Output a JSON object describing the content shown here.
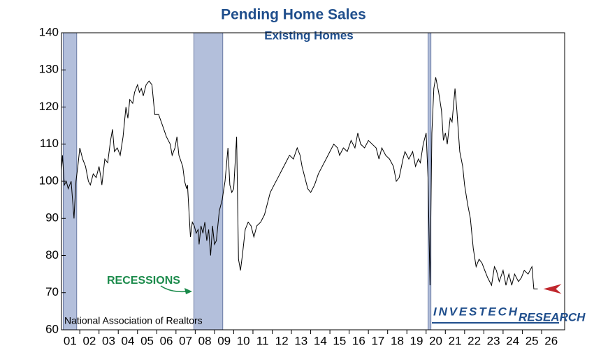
{
  "chart_data": {
    "type": "line",
    "title": "Pending Home Sales",
    "subtitle": "Existing Homes",
    "source": "National Association of Realtors",
    "annotation": "RECESSIONS",
    "logo": [
      "INVESTECH",
      "RESEARCH"
    ],
    "color": "#000000",
    "recession_color": "#b3bfdb",
    "recessions": [
      [
        1.14,
        1.84
      ],
      [
        7.93,
        9.43
      ],
      [
        20.1,
        20.25
      ]
    ],
    "xlim": [
      1.05,
      27.2
    ],
    "ylim": [
      60,
      140
    ],
    "yticks": [
      60,
      70,
      80,
      90,
      100,
      110,
      120,
      130,
      140
    ],
    "xticks": [
      {
        "value": 1,
        "label": "01"
      },
      {
        "value": 2,
        "label": "02"
      },
      {
        "value": 3,
        "label": "03"
      },
      {
        "value": 4,
        "label": "04"
      },
      {
        "value": 5,
        "label": "05"
      },
      {
        "value": 6,
        "label": "06"
      },
      {
        "value": 7,
        "label": "07"
      },
      {
        "value": 8,
        "label": "08"
      },
      {
        "value": 9,
        "label": "09"
      },
      {
        "value": 10,
        "label": "10"
      },
      {
        "value": 11,
        "label": "11"
      },
      {
        "value": 12,
        "label": "12"
      },
      {
        "value": 13,
        "label": "13"
      },
      {
        "value": 14,
        "label": "14"
      },
      {
        "value": 15,
        "label": "15"
      },
      {
        "value": 16,
        "label": "16"
      },
      {
        "value": 17,
        "label": "17"
      },
      {
        "value": 18,
        "label": "18"
      },
      {
        "value": 19,
        "label": "19"
      },
      {
        "value": 20,
        "label": "20"
      },
      {
        "value": 21,
        "label": "21"
      },
      {
        "value": 22,
        "label": "22"
      },
      {
        "value": 23,
        "label": "23"
      },
      {
        "value": 24,
        "label": "24"
      },
      {
        "value": 25,
        "label": "25"
      },
      {
        "value": 26,
        "label": "26"
      }
    ],
    "grid": false,
    "x": [
      1.05,
      1.1,
      1.2,
      1.3,
      1.4,
      1.55,
      1.7,
      1.8,
      1.9,
      2.0,
      2.15,
      2.3,
      2.45,
      2.55,
      2.7,
      2.85,
      3.0,
      3.1,
      3.15,
      3.3,
      3.45,
      3.6,
      3.7,
      3.8,
      3.95,
      4.1,
      4.25,
      4.4,
      4.5,
      4.6,
      4.75,
      4.85,
      5.0,
      5.1,
      5.2,
      5.3,
      5.45,
      5.6,
      5.75,
      5.9,
      6.1,
      6.3,
      6.5,
      6.7,
      6.8,
      6.95,
      7.05,
      7.15,
      7.35,
      7.45,
      7.55,
      7.6,
      7.75,
      7.85,
      7.95,
      8.05,
      8.15,
      8.2,
      8.3,
      8.4,
      8.5,
      8.6,
      8.7,
      8.8,
      8.9,
      9.0,
      9.1,
      9.25,
      9.4,
      9.55,
      9.7,
      9.8,
      9.9,
      10.0,
      10.15,
      10.25,
      10.35,
      10.45,
      10.6,
      10.75,
      10.9,
      11.05,
      11.2,
      11.4,
      11.6,
      11.75,
      11.9,
      12.1,
      12.3,
      12.5,
      12.7,
      12.9,
      13.1,
      13.3,
      13.45,
      13.55,
      13.7,
      13.85,
      14.0,
      14.2,
      14.4,
      14.6,
      14.8,
      15.0,
      15.2,
      15.4,
      15.5,
      15.7,
      15.9,
      16.1,
      16.3,
      16.45,
      16.6,
      16.8,
      17.0,
      17.2,
      17.4,
      17.55,
      17.7,
      17.9,
      18.1,
      18.3,
      18.45,
      18.6,
      18.8,
      18.9,
      19.1,
      19.3,
      19.45,
      19.6,
      19.7,
      19.85,
      20.0,
      20.1,
      20.2,
      20.3,
      20.4,
      20.5,
      20.65,
      20.8,
      20.9,
      21.0,
      21.1,
      21.25,
      21.35,
      21.5,
      21.6,
      21.75,
      21.9,
      22.0,
      22.15,
      22.3,
      22.45,
      22.6,
      22.75,
      22.9,
      23.05,
      23.2,
      23.4,
      23.55,
      23.65,
      23.8,
      24.0,
      24.15,
      24.3,
      24.45,
      24.6,
      24.8,
      24.95,
      25.1,
      25.3,
      25.5,
      25.6,
      25.8
    ],
    "values": [
      103,
      107,
      99,
      100,
      98,
      100,
      90,
      100,
      104,
      109,
      106,
      104,
      100,
      99,
      102,
      101,
      104,
      101,
      99,
      106,
      105,
      111,
      114,
      108,
      109,
      107,
      112,
      120,
      117,
      122,
      121,
      124,
      126,
      124,
      125,
      123,
      126,
      127,
      126,
      118,
      118,
      115,
      112,
      110,
      107,
      109,
      112,
      107,
      104,
      100,
      98,
      99,
      85,
      89,
      88,
      86,
      87,
      83,
      88,
      86,
      89,
      84,
      87,
      80,
      88,
      83,
      84,
      92,
      95,
      100,
      109,
      99,
      97,
      98,
      112,
      79,
      76,
      80,
      87,
      89,
      88,
      85,
      88,
      89,
      91,
      94,
      97,
      99,
      101,
      103,
      105,
      107,
      106,
      109,
      107,
      104,
      101,
      98,
      97,
      99,
      102,
      104,
      106,
      108,
      110,
      109,
      107,
      109,
      108,
      111,
      109,
      113,
      110,
      109,
      111,
      110,
      109,
      106,
      109,
      107,
      106,
      104,
      100,
      101,
      106,
      108,
      106,
      108,
      104,
      106,
      105,
      110,
      113,
      101,
      72,
      113,
      125,
      128,
      124,
      119,
      111,
      113,
      110,
      117,
      116,
      125,
      119,
      108,
      104,
      99,
      94,
      90,
      82,
      77,
      79,
      78,
      76,
      74,
      72,
      77,
      76,
      73,
      76,
      72,
      75,
      72,
      75,
      73,
      74,
      76,
      75,
      77,
      71,
      71
    ]
  }
}
